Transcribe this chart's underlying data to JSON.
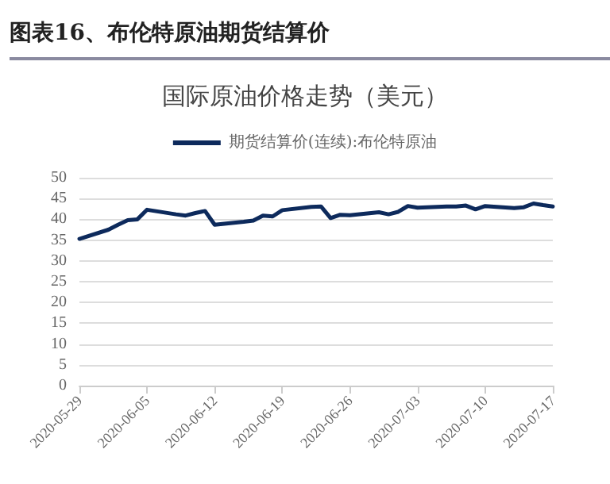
{
  "chart_data": {
    "type": "line",
    "title": "图表16、布伦特原油期货结算价",
    "subtitle": "国际原油价格走势（美元）",
    "x": [
      "2020-05-29",
      "2020-06-01",
      "2020-06-02",
      "2020-06-03",
      "2020-06-04",
      "2020-06-05",
      "2020-06-08",
      "2020-06-09",
      "2020-06-10",
      "2020-06-11",
      "2020-06-12",
      "2020-06-15",
      "2020-06-16",
      "2020-06-17",
      "2020-06-18",
      "2020-06-19",
      "2020-06-22",
      "2020-06-23",
      "2020-06-24",
      "2020-06-25",
      "2020-06-26",
      "2020-06-29",
      "2020-06-30",
      "2020-07-01",
      "2020-07-02",
      "2020-07-03",
      "2020-07-06",
      "2020-07-07",
      "2020-07-08",
      "2020-07-09",
      "2020-07-10",
      "2020-07-13",
      "2020-07-14",
      "2020-07-15",
      "2020-07-16",
      "2020-07-17"
    ],
    "series": [
      {
        "name": "期货结算价(连续):布伦特原油",
        "color": "#0d2a5c",
        "values": [
          35.3,
          37.5,
          38.7,
          39.8,
          40.0,
          42.3,
          41.2,
          40.9,
          41.5,
          42.0,
          38.7,
          39.4,
          39.7,
          40.9,
          40.7,
          42.2,
          43.0,
          43.1,
          40.3,
          41.1,
          41.0,
          41.7,
          41.2,
          41.8,
          43.2,
          42.8,
          43.1,
          43.1,
          43.3,
          42.4,
          43.2,
          42.7,
          42.9,
          43.8,
          43.4,
          43.1
        ]
      }
    ],
    "xlim": [
      "2020-05-29",
      "2020-07-17"
    ],
    "xticks": [
      "2020-05-29",
      "2020-06-05",
      "2020-06-12",
      "2020-06-19",
      "2020-06-26",
      "2020-07-03",
      "2020-07-10",
      "2020-07-17"
    ],
    "ylim": [
      0,
      50
    ],
    "yticks": [
      0,
      5,
      10,
      15,
      20,
      25,
      30,
      35,
      40,
      45,
      50
    ],
    "grid": "y",
    "legend": "top",
    "marker": "none",
    "line_style": "solid"
  }
}
